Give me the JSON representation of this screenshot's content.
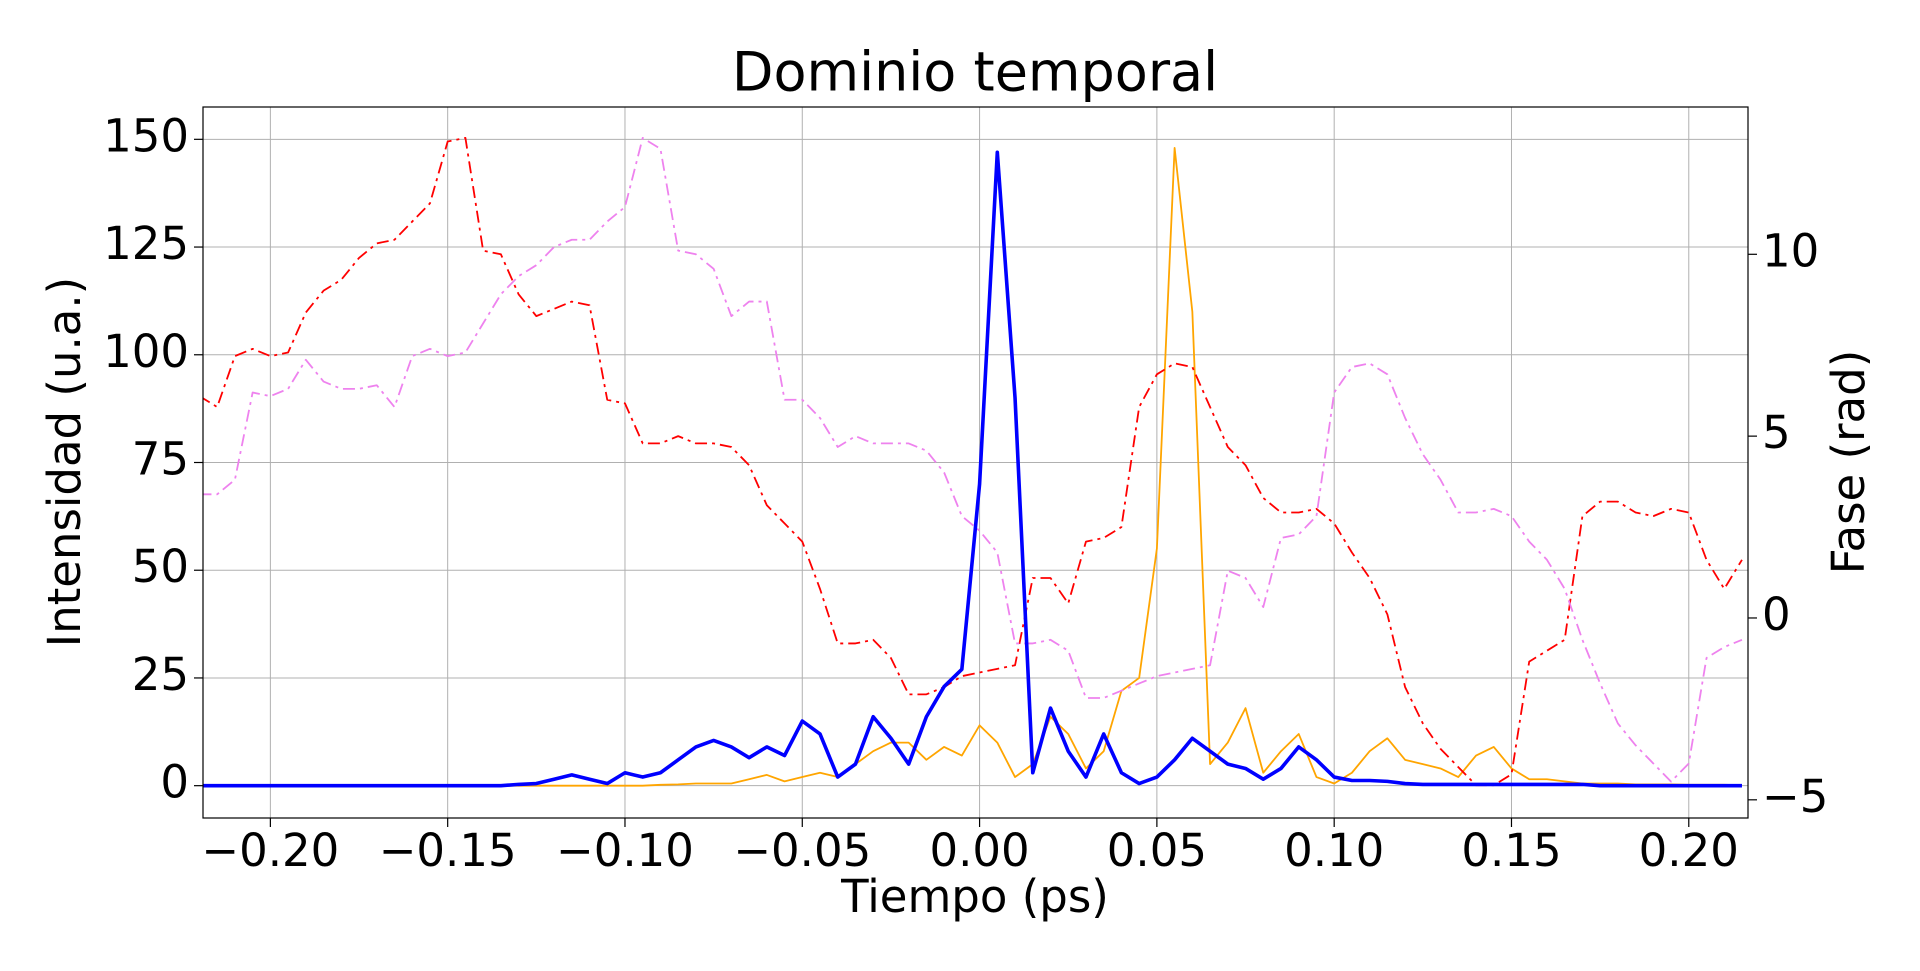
{
  "chart_data": {
    "type": "line",
    "title": "Dominio temporal",
    "xlabel": "Tiempo (ps)",
    "ylabel": "Intensidad (u.a.)",
    "y2label": "Fase (rad)",
    "grid": true,
    "xlim": [
      -0.219,
      0.2167
    ],
    "ylim": [
      -7.5,
      157.5
    ],
    "y2lim": [
      -5.5,
      14.05
    ],
    "xticks": [
      {
        "value": -0.2,
        "label": "−0.20"
      },
      {
        "value": -0.15,
        "label": "−0.15"
      },
      {
        "value": -0.1,
        "label": "−0.10"
      },
      {
        "value": -0.05,
        "label": "−0.05"
      },
      {
        "value": 0,
        "label": "0.00"
      },
      {
        "value": 0.05,
        "label": "0.05"
      },
      {
        "value": 0.1,
        "label": "0.10"
      },
      {
        "value": 0.15,
        "label": "0.15"
      },
      {
        "value": 0.2,
        "label": "0.20"
      }
    ],
    "yticks": [
      0,
      25,
      50,
      75,
      100,
      125,
      150
    ],
    "y2ticks": [
      {
        "value": -5,
        "label": "−5"
      },
      0,
      5,
      10
    ],
    "x": [
      -0.22,
      -0.215,
      -0.21,
      -0.205,
      -0.2,
      -0.195,
      -0.19,
      -0.185,
      -0.18,
      -0.175,
      -0.17,
      -0.165,
      -0.16,
      -0.155,
      -0.15,
      -0.145,
      -0.14,
      -0.135,
      -0.13,
      -0.125,
      -0.12,
      -0.115,
      -0.11,
      -0.105,
      -0.1,
      -0.095,
      -0.09,
      -0.085,
      -0.08,
      -0.075,
      -0.07,
      -0.065,
      -0.06,
      -0.055,
      -0.05,
      -0.045,
      -0.04,
      -0.035,
      -0.03,
      -0.025,
      -0.02,
      -0.015,
      -0.01,
      -0.005,
      0,
      0.005,
      0.01,
      0.015,
      0.02,
      0.025,
      0.03,
      0.035,
      0.04,
      0.045,
      0.05,
      0.055,
      0.06,
      0.065,
      0.07,
      0.075,
      0.08,
      0.085,
      0.09,
      0.095,
      0.1,
      0.105,
      0.11,
      0.115,
      0.12,
      0.125,
      0.13,
      0.135,
      0.14,
      0.145,
      0.15,
      0.155,
      0.16,
      0.165,
      0.17,
      0.175,
      0.18,
      0.185,
      0.19,
      0.195,
      0.2,
      0.205,
      0.21,
      0.215
    ],
    "series": [
      {
        "color": "#ffa500",
        "linewidth": 1.8,
        "linestyle": "-",
        "values": [
          0,
          0,
          0,
          0,
          0,
          0,
          0,
          0,
          0,
          0,
          0,
          0,
          0,
          0,
          0,
          0,
          0,
          0,
          0,
          0,
          0,
          0,
          0,
          0,
          0,
          0,
          0.2,
          0.3,
          0.5,
          0.5,
          0.5,
          1.5,
          2.5,
          1,
          2,
          3,
          2,
          5,
          8,
          10,
          10,
          6,
          9,
          7,
          14,
          10,
          2,
          5,
          16,
          12,
          4,
          8,
          22,
          25,
          55,
          148,
          110,
          5,
          10,
          18,
          3,
          8,
          12,
          2,
          0.5,
          3,
          8,
          11,
          6,
          5,
          4,
          2,
          7,
          9,
          4,
          1.5,
          1.5,
          1,
          0.5,
          0.5,
          0.5,
          0.3,
          0.3,
          0.3,
          0.2,
          0.2,
          0.2,
          0.1
        ]
      },
      {
        "color": "#ff0000",
        "linewidth": 1.8,
        "linestyle": "-.",
        "axis": "y2",
        "values": [
          6.1,
          5.8,
          7.2,
          7.4,
          7.2,
          7.3,
          8.4,
          9.0,
          9.3,
          9.9,
          10.3,
          10.4,
          10.9,
          11.4,
          13.1,
          13.2,
          10.1,
          10.0,
          8.9,
          8.3,
          8.5,
          8.7,
          8.6,
          6.0,
          5.9,
          4.8,
          4.8,
          5.0,
          4.8,
          4.8,
          4.7,
          4.2,
          3.1,
          2.6,
          2.1,
          0.8,
          -0.7,
          -0.7,
          -0.6,
          -1.1,
          -2.1,
          -2.1,
          -1.9,
          -1.6,
          -1.5,
          -1.4,
          -1.3,
          1.1,
          1.1,
          0.4,
          2.1,
          2.2,
          2.5,
          5.8,
          6.7,
          7.0,
          6.9,
          5.8,
          4.7,
          4.2,
          3.3,
          2.9,
          2.9,
          3.0,
          2.6,
          1.8,
          1.1,
          0.1,
          -1.9,
          -2.9,
          -3.6,
          -4.1,
          -4.6,
          -4.6,
          -4.3,
          -1.2,
          -0.9,
          -0.6,
          2.8,
          3.2,
          3.2,
          2.9,
          2.8,
          3.0,
          2.9,
          1.6,
          0.8,
          1.6
        ]
      },
      {
        "color": "#ee82ee",
        "linewidth": 1.8,
        "linestyle": "-.",
        "axis": "y2",
        "values": [
          3.4,
          3.4,
          3.8,
          6.2,
          6.1,
          6.3,
          7.1,
          6.5,
          6.3,
          6.3,
          6.4,
          5.8,
          7.2,
          7.4,
          7.2,
          7.3,
          8.1,
          8.9,
          9.4,
          9.7,
          10.2,
          10.4,
          10.4,
          10.9,
          11.3,
          13.2,
          12.9,
          10.1,
          10.0,
          9.6,
          8.3,
          8.7,
          8.7,
          6.0,
          6.0,
          5.5,
          4.7,
          5.0,
          4.8,
          4.8,
          4.8,
          4.6,
          4.0,
          2.8,
          2.4,
          1.8,
          -0.7,
          -0.7,
          -0.6,
          -0.9,
          -2.2,
          -2.2,
          -2.0,
          -1.8,
          -1.6,
          -1.5,
          -1.4,
          -1.3,
          1.3,
          1.1,
          0.3,
          2.2,
          2.3,
          2.8,
          6.2,
          6.9,
          7.0,
          6.7,
          5.5,
          4.5,
          3.8,
          2.9,
          2.9,
          3.0,
          2.8,
          2.1,
          1.6,
          0.8,
          -0.6,
          -1.8,
          -2.9,
          -3.5,
          -4.0,
          -4.5,
          -4.0,
          -1.1,
          -0.8,
          -0.6
        ]
      },
      {
        "color": "#0000ff",
        "linewidth": 3.6,
        "linestyle": "-",
        "values": [
          0,
          0,
          0,
          0,
          0,
          0,
          0,
          0,
          0,
          0,
          0,
          0,
          0,
          0,
          0,
          0,
          0,
          0,
          0.3,
          0.5,
          1.5,
          2.5,
          1.5,
          0.5,
          3,
          2,
          3,
          6,
          9,
          10.5,
          9,
          6.5,
          9,
          7,
          15,
          12,
          2,
          5,
          16,
          11,
          5,
          16,
          23,
          27,
          70,
          147,
          90,
          3,
          18,
          8,
          2,
          12,
          3,
          0.5,
          2,
          6,
          11,
          8,
          5,
          4,
          1.5,
          4,
          9,
          6,
          2,
          1.2,
          1.2,
          1,
          0.5,
          0.3,
          0.3,
          0.3,
          0.3,
          0.3,
          0.3,
          0.3,
          0.3,
          0.3,
          0.3,
          0,
          0,
          0,
          0,
          0,
          0,
          0,
          0,
          0
        ]
      }
    ]
  }
}
